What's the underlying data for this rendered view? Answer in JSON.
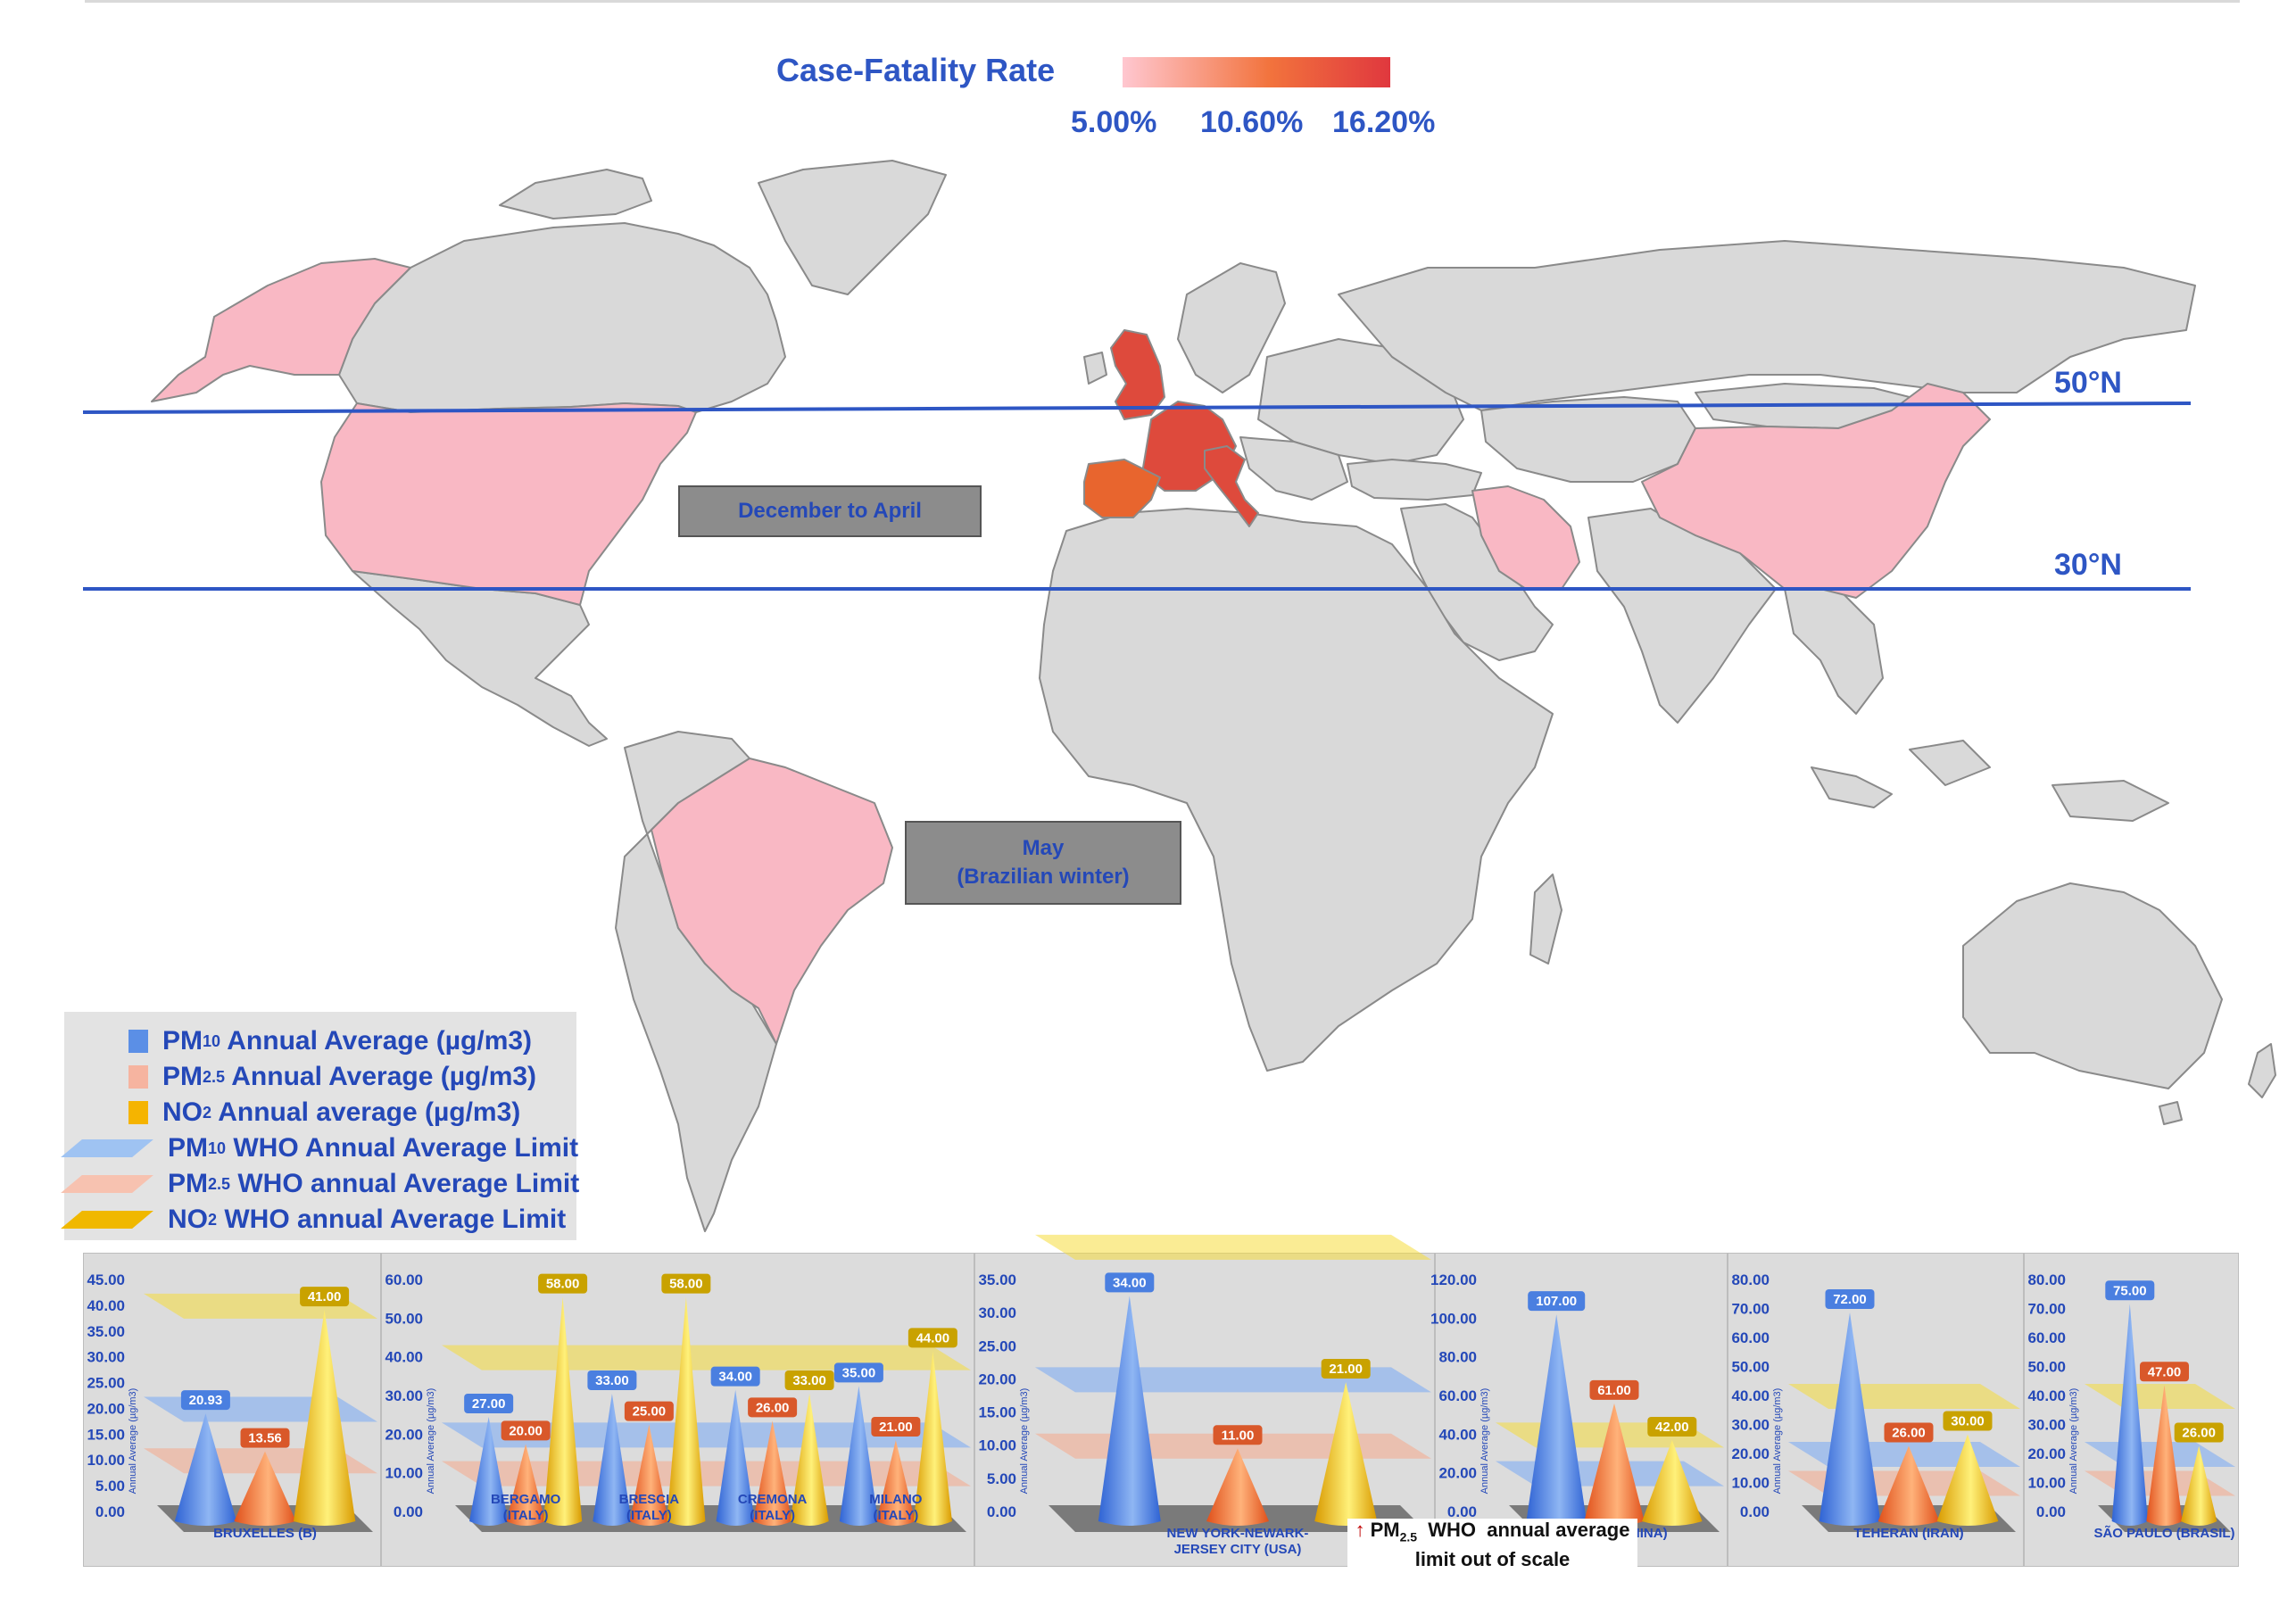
{
  "legend_title": "Case-Fatality Rate",
  "scale": {
    "labels": [
      "5.00%",
      "10.60%",
      "16.20%"
    ],
    "colors": [
      "#ffc7d0",
      "#f2733d",
      "#e0383e"
    ]
  },
  "latitude_lines": [
    {
      "label": "50°N",
      "latitude": 50
    },
    {
      "label": "30°N",
      "latitude": 30
    }
  ],
  "seasons": {
    "north": {
      "label": "December  to  April"
    },
    "south": {
      "line1": "May",
      "line2": "(Brazilian winter)"
    }
  },
  "highlighted_regions": [
    {
      "name": "Alaska",
      "cfr_color": "#f9b8c4"
    },
    {
      "name": "USA",
      "cfr_color": "#f9b8c4"
    },
    {
      "name": "Brazil",
      "cfr_color": "#f9b8c4"
    },
    {
      "name": "United Kingdom",
      "cfr_color": "#de4a3c"
    },
    {
      "name": "France",
      "cfr_color": "#de4a3c"
    },
    {
      "name": "Belgium",
      "cfr_color": "#de4a3c"
    },
    {
      "name": "Italy",
      "cfr_color": "#de4a3c"
    },
    {
      "name": "Spain",
      "cfr_color": "#e8652e"
    },
    {
      "name": "Iran",
      "cfr_color": "#f9b8c4"
    },
    {
      "name": "China",
      "cfr_color": "#f9b8c4"
    }
  ],
  "pollutant_legend": [
    {
      "sym": "PM",
      "sub": "10",
      "text": " Annual Average (µg/m3)",
      "kind": "square",
      "color": "#5b8fe6"
    },
    {
      "sym": "PM",
      "sub": "2.5",
      "text": " Annual Average (µg/m3)",
      "kind": "square",
      "color": "#f6b4a0"
    },
    {
      "sym": "NO",
      "sub": "2",
      "text": " Annual average (µg/m3)",
      "kind": "square",
      "color": "#f5b400"
    },
    {
      "sym": "PM",
      "sub": "10",
      "text": " WHO Annual Average Limit",
      "kind": "plane",
      "color": "#9fc3f2"
    },
    {
      "sym": "PM",
      "sub": "2.5",
      "text": " WHO annual Average Limit",
      "kind": "plane",
      "color": "#f7c2b0"
    },
    {
      "sym": "NO",
      "sub": "2",
      "text": " WHO annual Average Limit",
      "kind": "plane",
      "color": "#f0b800"
    }
  ],
  "colors": {
    "pm10": "#4a7fe0",
    "pm25": "#ee6a2a",
    "no2": "#e8b800"
  },
  "chart_data": [
    {
      "type": "bar",
      "ylabel": "Annual Average (µg/m3)",
      "yticks": [
        "0.00",
        "5.00",
        "10.00",
        "15.00",
        "20.00",
        "25.00",
        "30.00",
        "35.00",
        "40.00",
        "45.00"
      ],
      "ylim": [
        0,
        45
      ],
      "categories": [
        {
          "label": [
            "BRUXELLES (B)"
          ],
          "pm10": 20.93,
          "pm25": 13.56,
          "no2": 41.0,
          "pm10_lbl": "20.93",
          "pm25_lbl": "13.56",
          "no2_lbl": "41.00"
        }
      ],
      "who_limits": {
        "pm10": 20,
        "pm25": 10,
        "no2": 40
      }
    },
    {
      "type": "bar",
      "ylabel": "Annual Average (µg/m3)",
      "yticks": [
        "0.00",
        "10.00",
        "20.00",
        "30.00",
        "40.00",
        "50.00",
        "60.00"
      ],
      "ylim": [
        0,
        60
      ],
      "categories": [
        {
          "label": [
            "BERGAMO",
            "(ITALY)"
          ],
          "pm10": 27.0,
          "pm25": 20.0,
          "no2": 58.0,
          "pm10_lbl": "27.00",
          "pm25_lbl": "20.00",
          "no2_lbl": "58.00"
        },
        {
          "label": [
            "BRESCIA",
            "(ITALY)"
          ],
          "pm10": 33.0,
          "pm25": 25.0,
          "no2": 58.0,
          "pm10_lbl": "33.00",
          "pm25_lbl": "25.00",
          "no2_lbl": "58.00"
        },
        {
          "label": [
            "CREMONA",
            "(ITALY)"
          ],
          "pm10": 34.0,
          "pm25": 26.0,
          "no2": 33.0,
          "pm10_lbl": "34.00",
          "pm25_lbl": "26.00",
          "no2_lbl": "33.00"
        },
        {
          "label": [
            "MILANO",
            "(ITALY)"
          ],
          "pm10": 35.0,
          "pm25": 21.0,
          "no2": 44.0,
          "pm10_lbl": "35.00",
          "pm25_lbl": "21.00",
          "no2_lbl": "44.00"
        }
      ],
      "who_limits": {
        "pm10": 20,
        "pm25": 10,
        "no2": 40
      }
    },
    {
      "type": "bar",
      "ylabel": "Annual Average (µg/m3)",
      "yticks": [
        "0.00",
        "5.00",
        "10.00",
        "15.00",
        "20.00",
        "25.00",
        "30.00",
        "35.00"
      ],
      "ylim": [
        0,
        35
      ],
      "categories": [
        {
          "label": [
            "NEW YORK-NEWARK-",
            "JERSEY CITY (USA)"
          ],
          "pm10": 34.0,
          "pm25": 11.0,
          "no2": 21.0,
          "pm10_lbl": "34.00",
          "pm25_lbl": "11.00",
          "no2_lbl": "21.00"
        }
      ],
      "who_limits": {
        "pm10": 20,
        "pm25": 10,
        "no2": 40
      }
    },
    {
      "type": "bar",
      "ylabel": "Annual Average (µg/m3)",
      "yticks": [
        "0.00",
        "20.00",
        "40.00",
        "60.00",
        "80.00",
        "100.00",
        "120.00"
      ],
      "ylim": [
        0,
        120
      ],
      "categories": [
        {
          "label": [
            "WUHAN (CHINA)"
          ],
          "pm10": 107.0,
          "pm25": 61.0,
          "no2": 42.0,
          "pm10_lbl": "107.00",
          "pm25_lbl": "61.00",
          "no2_lbl": "42.00"
        }
      ],
      "who_limits": {
        "pm10": 20,
        "no2": 40
      }
    },
    {
      "type": "bar",
      "ylabel": "Annual Average (µg/m3)",
      "yticks": [
        "0.00",
        "10.00",
        "20.00",
        "30.00",
        "40.00",
        "50.00",
        "60.00",
        "70.00",
        "80.00"
      ],
      "ylim": [
        0,
        80
      ],
      "categories": [
        {
          "label": [
            "TEHERAN  (IRAN)"
          ],
          "pm10": 72.0,
          "pm25": 26.0,
          "no2": 30.0,
          "pm10_lbl": "72.00",
          "pm25_lbl": "26.00",
          "no2_lbl": "30.00"
        }
      ],
      "who_limits": {
        "pm10": 20,
        "pm25": 10,
        "no2": 40
      }
    },
    {
      "type": "bar",
      "ylabel": "Annual Average (µg/m3)",
      "yticks": [
        "0.00",
        "10.00",
        "20.00",
        "30.00",
        "40.00",
        "50.00",
        "60.00",
        "70.00",
        "80.00"
      ],
      "ylim": [
        0,
        80
      ],
      "categories": [
        {
          "label": [
            "SÃO PAULO (BRASIL)"
          ],
          "pm10": 75.0,
          "pm25": 47.0,
          "no2": 26.0,
          "pm10_lbl": "75.00",
          "pm25_lbl": "47.00",
          "no2_lbl": "26.00"
        }
      ],
      "who_limits": {
        "pm10": 20,
        "pm25": 10,
        "no2": 40
      }
    }
  ],
  "wuhan_note": {
    "pm": "PM",
    "sub": "2.5",
    "line1": "  WHO  annual average",
    "line2": "limit out of scale"
  }
}
